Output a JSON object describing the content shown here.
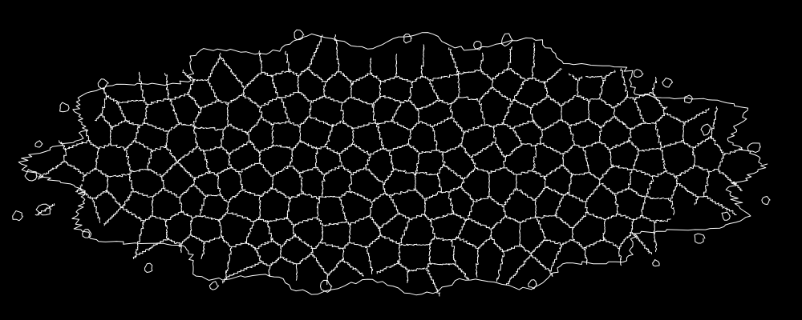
{
  "image": {
    "kind": "cell-membrane-segmentation-outline",
    "background_color": "#000000",
    "line_color": "#ffffff",
    "description_free": true
  }
}
